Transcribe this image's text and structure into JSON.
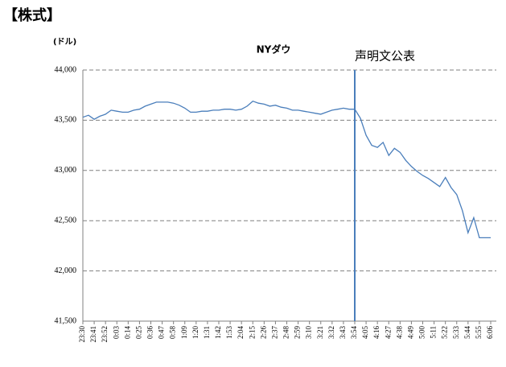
{
  "header": "【株式】",
  "chart_data": {
    "type": "line",
    "title": "NYダウ",
    "y_label": "(ドル)",
    "categories": [
      "23:30",
      null,
      "23:41",
      null,
      "23:52",
      null,
      "0:03",
      null,
      "0:14",
      null,
      "0:25",
      null,
      "0:36",
      null,
      "0:47",
      null,
      "0:58",
      null,
      "1:09",
      null,
      "1:20",
      null,
      "1:31",
      null,
      "1:42",
      null,
      "1:53",
      null,
      "2:04",
      null,
      "2:15",
      null,
      "2:26",
      null,
      "2:37",
      null,
      "2:48",
      null,
      "2:59",
      null,
      "3:10",
      null,
      "3:21",
      null,
      "3:32",
      null,
      "3:43",
      null,
      "3:54",
      null,
      "4:05",
      null,
      "4:16",
      null,
      "4:27",
      null,
      "4:38",
      null,
      "4:49",
      null,
      "5:00",
      null,
      "5:11",
      null,
      "5:22",
      null,
      "5:33",
      null,
      "5:44",
      null,
      "5:55",
      null,
      "6:06"
    ],
    "values": [
      43530,
      43550,
      43510,
      43540,
      43560,
      43600,
      43590,
      43580,
      43580,
      43600,
      43610,
      43640,
      43660,
      43680,
      43680,
      43680,
      43670,
      43650,
      43620,
      43580,
      43580,
      43590,
      43590,
      43600,
      43600,
      43610,
      43610,
      43600,
      43610,
      43640,
      43690,
      43670,
      43660,
      43640,
      43650,
      43630,
      43620,
      43600,
      43600,
      43590,
      43580,
      43570,
      43560,
      43580,
      43600,
      43610,
      43620,
      43610,
      43610,
      43520,
      43350,
      43250,
      43230,
      43280,
      43150,
      43220,
      43180,
      43100,
      43040,
      42990,
      42950,
      42920,
      42880,
      42840,
      42930,
      42830,
      42760,
      42600,
      42380,
      42530,
      42330,
      42330,
      42330
    ],
    "color": "#4a7ebb",
    "ylim": [
      41500,
      44000
    ],
    "yticks": [
      {
        "value": 41500,
        "label": "41,500"
      },
      {
        "value": 42000,
        "label": "42,000"
      },
      {
        "value": 42500,
        "label": "42,500"
      },
      {
        "value": 43000,
        "label": "43,000"
      },
      {
        "value": 43500,
        "label": "43,500"
      },
      {
        "value": 44000,
        "label": "44,000"
      }
    ],
    "grid": true,
    "annotations": [
      {
        "text": "声明文公表",
        "x": "3:54"
      }
    ]
  }
}
